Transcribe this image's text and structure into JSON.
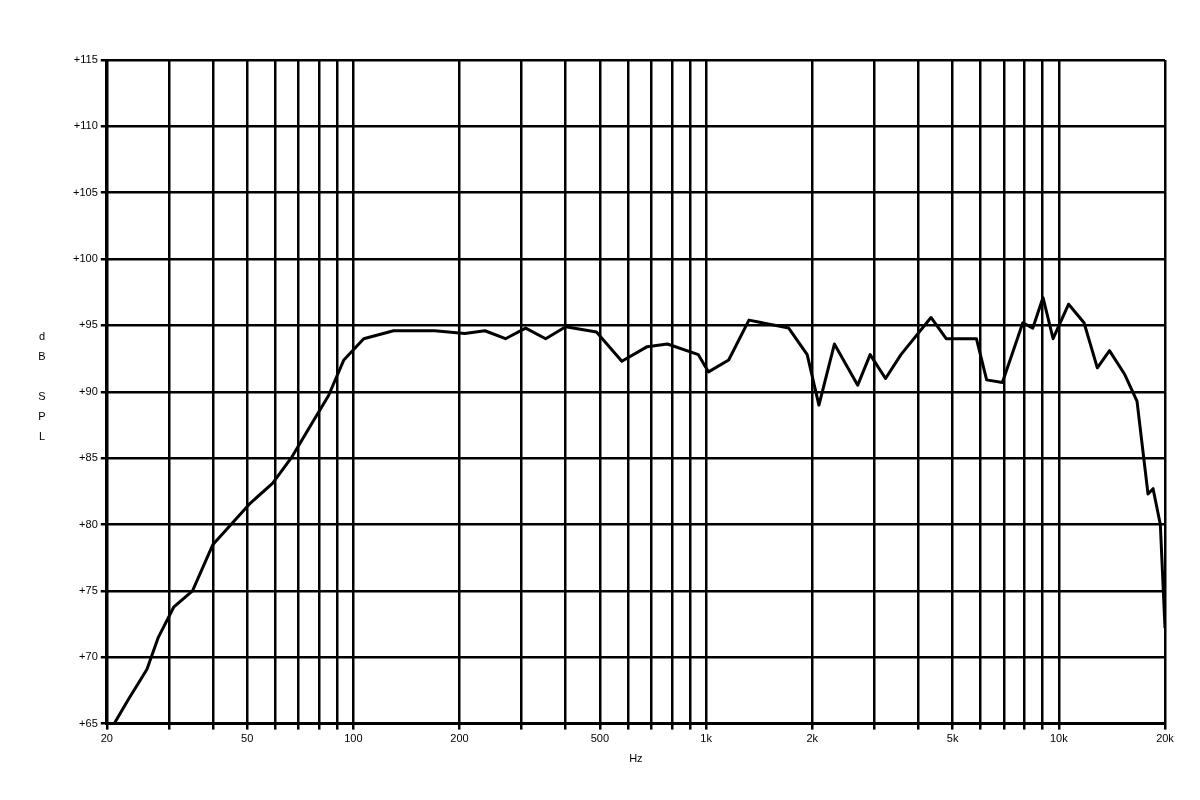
{
  "chart_data": {
    "type": "line",
    "xlabel": "Hz",
    "ylabel": "dB SPL",
    "log": "x",
    "grid": true,
    "legend": false,
    "marker": "none",
    "line_style": "solid",
    "xlim": [
      20,
      20000
    ],
    "xticks": [
      20,
      {
        "value": 30,
        "label": null
      },
      {
        "value": 40,
        "label": null
      },
      50,
      {
        "value": 60,
        "label": null
      },
      {
        "value": 70,
        "label": null
      },
      {
        "value": 80,
        "label": null
      },
      {
        "value": 90,
        "label": null
      },
      100,
      200,
      {
        "value": 300,
        "label": null
      },
      {
        "value": 400,
        "label": null
      },
      500,
      {
        "value": 600,
        "label": null
      },
      {
        "value": 700,
        "label": null
      },
      {
        "value": 800,
        "label": null
      },
      {
        "value": 900,
        "label": null
      },
      {
        "value": 1000,
        "label": "1k"
      },
      {
        "value": 2000,
        "label": "2k"
      },
      {
        "value": 3000,
        "label": null
      },
      {
        "value": 4000,
        "label": null
      },
      {
        "value": 5000,
        "label": "5k"
      },
      {
        "value": 6000,
        "label": null
      },
      {
        "value": 7000,
        "label": null
      },
      {
        "value": 8000,
        "label": null
      },
      {
        "value": 9000,
        "label": null
      },
      {
        "value": 10000,
        "label": "10k"
      },
      {
        "value": 20000,
        "label": "20k"
      }
    ],
    "ylim": [
      65,
      115
    ],
    "yticks": [
      {
        "value": 65,
        "label": "+65"
      },
      {
        "value": 70,
        "label": "+70"
      },
      {
        "value": 75,
        "label": "+75"
      },
      {
        "value": 80,
        "label": "+80"
      },
      {
        "value": 85,
        "label": "+85"
      },
      {
        "value": 90,
        "label": "+90"
      },
      {
        "value": 95,
        "label": "+95"
      },
      {
        "value": 100,
        "label": "+100"
      },
      {
        "value": 105,
        "label": "+105"
      },
      {
        "value": 110,
        "label": "+110"
      },
      {
        "value": 115,
        "label": "+115"
      }
    ],
    "x": [
      21,
      23,
      26,
      28,
      31,
      35,
      40,
      45,
      51,
      59,
      67,
      77,
      85,
      94,
      107,
      130,
      170,
      207,
      236,
      270,
      308,
      351,
      400,
      489,
      577,
      681,
      777,
      951,
      1016,
      1159,
      1323,
      1715,
      1935,
      2089,
      2311,
      2691,
      2918,
      3227,
      3568,
      4341,
      4794,
      5840,
      6243,
      6918,
      7906,
      8440,
      9020,
      9634,
      10660,
      11790,
      12860,
      13920,
      15380,
      16660,
      17900,
      18500,
      19400,
      20000
    ],
    "series": [
      {
        "color": "#000000",
        "values": [
          65,
          66.8,
          69.1,
          71.5,
          73.8,
          75,
          78.5,
          80,
          81.6,
          83.1,
          85.1,
          87.8,
          89.7,
          92.4,
          94,
          94.6,
          94.6,
          94.4,
          94.6,
          94,
          94.8,
          94,
          94.9,
          94.5,
          92.3,
          93.4,
          93.6,
          92.8,
          91.5,
          92.4,
          95.4,
          94.8,
          92.8,
          89,
          93.6,
          90.5,
          92.8,
          91,
          92.8,
          95.6,
          94,
          94,
          90.9,
          90.7,
          95.2,
          94.8,
          97.1,
          94,
          96.6,
          95.2,
          91.8,
          93.1,
          91.3,
          89.3,
          82.3,
          82.7,
          80,
          72.2
        ]
      }
    ]
  }
}
